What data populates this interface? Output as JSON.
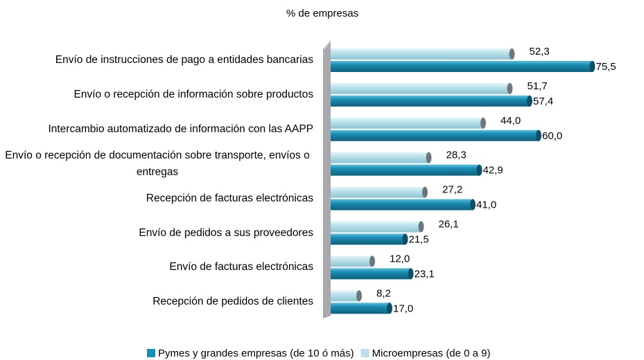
{
  "chart_data": {
    "type": "bar",
    "orientation": "horizontal",
    "title": "% de empresas",
    "categories": [
      "Envío de instrucciones de pago a entidades bancarias",
      "Envío o recepción de información sobre productos",
      "Intercambio automatizado de información con las AAPP",
      "Envío o recepción de documentación sobre transporte, envíos o entregas",
      "Recepción de facturas electrónicas",
      "Envío de pedidos a sus proveedores",
      "Envío de facturas electrónicas",
      "Recepción de pedidos de clientes"
    ],
    "series": [
      {
        "name": "Pymes y grandes empresas (de 10 ó más)",
        "color": "#1b8db3",
        "values": [
          75.5,
          57.4,
          60.0,
          42.9,
          41.0,
          21.5,
          23.1,
          17.0
        ],
        "value_labels": [
          "75,5",
          "57,4",
          "60,0",
          "42,9",
          "41,0",
          "21,5",
          "23,1",
          "17,0"
        ]
      },
      {
        "name": "Microempresas (de 0 a 9)",
        "color": "#b9e1eb",
        "values": [
          52.3,
          51.7,
          44.0,
          28.3,
          27.2,
          26.1,
          12.0,
          8.2
        ],
        "value_labels": [
          "52,3",
          "51,7",
          "44,0",
          "28,3",
          "27,2",
          "26,1",
          "12,0",
          "8,2"
        ]
      }
    ],
    "legend": "bottom"
  }
}
